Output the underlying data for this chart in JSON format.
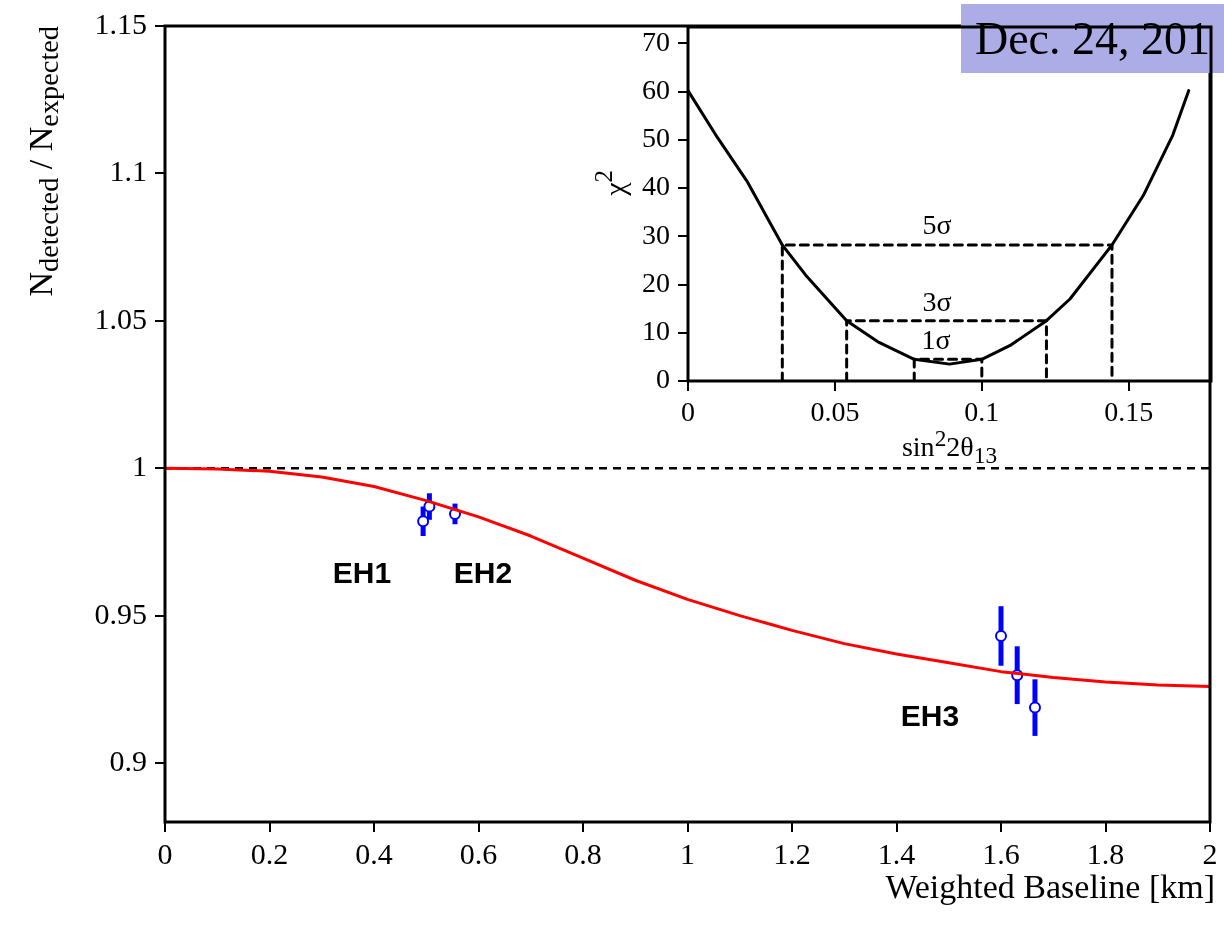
{
  "chart_data": [
    {
      "type": "line",
      "title": "Dec. 24, 201",
      "xlabel": "Weighted Baseline [km]",
      "ylabel": "N$_{detected}$ / N$_{expected}$",
      "xlim": [
        0,
        2
      ],
      "xticks": [
        0,
        0.2,
        0.4,
        0.6,
        0.8,
        1,
        1.2,
        1.4,
        1.6,
        1.8,
        2
      ],
      "ylim": [
        0.88,
        1.15
      ],
      "yticks": [
        0.9,
        0.95,
        1,
        1.05,
        1.1,
        1.15
      ],
      "grid": false,
      "legend": false,
      "ref_lines": [
        {
          "axis": "y",
          "value": 1,
          "color": "#000000",
          "line_style": "dashed"
        }
      ],
      "series": [
        {
          "color": "#ff0000",
          "marker": "none",
          "line_style": "solid",
          "x": [
            0,
            0.1,
            0.2,
            0.3,
            0.4,
            0.5,
            0.6,
            0.7,
            0.8,
            0.9,
            1.0,
            1.1,
            1.2,
            1.3,
            1.4,
            1.5,
            1.6,
            1.7,
            1.8,
            1.9,
            2.0
          ],
          "values": [
            1.0,
            0.9997,
            0.999,
            0.997,
            0.9938,
            0.989,
            0.9835,
            0.977,
            0.9695,
            0.962,
            0.9555,
            0.95,
            0.945,
            0.9405,
            0.937,
            0.934,
            0.931,
            0.929,
            0.9275,
            0.9265,
            0.926
          ]
        },
        {
          "type": "scatter",
          "color": "#0000ff",
          "marker": "circle",
          "x": [
            0.494,
            0.506,
            0.555,
            1.6,
            1.631,
            1.665
          ],
          "values": [
            0.982,
            0.987,
            0.9845,
            0.9431,
            0.9298,
            0.9188
          ],
          "errors": [
            0.005,
            0.0045,
            0.0035,
            0.0101,
            0.0098,
            0.0096
          ]
        }
      ],
      "annotations": [
        "EH1",
        "EH2",
        "EH3"
      ]
    },
    {
      "type": "line",
      "xlabel": "sin$^{2}$2θ$_{13}$",
      "ylabel": "χ$^{2}$",
      "xlim": [
        0,
        0.178
      ],
      "xticks": [
        0,
        0.05,
        0.1,
        0.15
      ],
      "ylim": [
        0,
        73.4
      ],
      "yticks": [
        0,
        10,
        20,
        30,
        40,
        50,
        60,
        70
      ],
      "grid": false,
      "legend": false,
      "series": [
        {
          "color": "#000000",
          "marker": "none",
          "line_style": "solid",
          "x": [
            0,
            0.01,
            0.02,
            0.0321,
            0.04,
            0.054,
            0.065,
            0.077,
            0.089,
            0.1,
            0.11,
            0.122,
            0.13,
            0.1443,
            0.155,
            0.165,
            0.1704
          ],
          "values": [
            60.2,
            50.5,
            41.5,
            28.2,
            22,
            12.5,
            8,
            4.5,
            3.5,
            4.5,
            7.5,
            12.5,
            17,
            28.2,
            38.5,
            51,
            60.2
          ]
        },
        {
          "color": "#000000",
          "marker": "none",
          "line_style": "dashed",
          "x": [
            0.0321,
            0.0321,
            0.1443,
            0.1443
          ],
          "values": [
            0,
            28.2,
            28.2,
            0
          ]
        },
        {
          "color": "#000000",
          "marker": "none",
          "line_style": "dashed",
          "x": [
            0.054,
            0.054,
            0.122,
            0.122
          ],
          "values": [
            0,
            12.5,
            12.5,
            0
          ]
        },
        {
          "color": "#000000",
          "marker": "none",
          "line_style": "dashed",
          "x": [
            0.077,
            0.077,
            0.1,
            0.1
          ],
          "values": [
            0,
            4.5,
            4.5,
            0
          ]
        }
      ],
      "annotations": [
        "5σ",
        "3σ",
        "1σ"
      ]
    }
  ]
}
